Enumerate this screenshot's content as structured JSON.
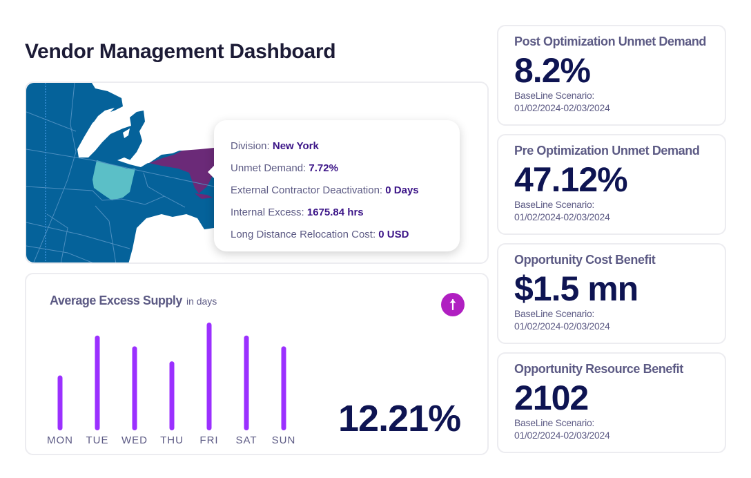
{
  "header": {
    "title": "Vendor Management Dashboard"
  },
  "map": {
    "colors": {
      "ocean_land": "#05629a",
      "borders": "#4d8fc0",
      "highlight_ohio": "#5bbfc7",
      "highlight_new_york": "#6b2a78",
      "lakes": "#ffffff"
    },
    "tooltip": {
      "rows": [
        {
          "label": "Division:",
          "value": "New York"
        },
        {
          "label": "Unmet Demand:",
          "value": "7.72%"
        },
        {
          "label": "External Contractor Deactivation:",
          "value": "0 Days"
        },
        {
          "label": "Internal Excess:",
          "value": "1675.84 hrs"
        },
        {
          "label": "Long Distance Relocation Cost:",
          "value": "0 USD"
        }
      ]
    }
  },
  "excess_supply": {
    "title": "Average Excess Supply",
    "subtitle": "in days",
    "trend_icon": "arrow-up-icon",
    "trend_color": "#b01fc1",
    "bar_color": "#9b30ff",
    "headline": "12.21%"
  },
  "chart_data": {
    "type": "bar",
    "title": "Average Excess Supply",
    "subtitle": "in days",
    "categories": [
      "MON",
      "TUE",
      "WED",
      "THU",
      "FRI",
      "SAT",
      "SUN"
    ],
    "values": [
      0.51,
      0.88,
      0.78,
      0.64,
      1.0,
      0.88,
      0.78
    ],
    "value_note": "relative heights (fraction of max); no axis shown",
    "xlabel": "",
    "ylabel": "",
    "ylim": [
      0,
      1
    ],
    "grid": false,
    "legend": "none"
  },
  "kpis": [
    {
      "title": "Post Optimization Unmet Demand",
      "value": "8.2%",
      "sub1": "BaseLine Scenario:",
      "sub2": "01/02/2024-02/03/2024"
    },
    {
      "title": "Pre Optimization Unmet Demand",
      "value": "47.12%",
      "sub1": "BaseLine Scenario:",
      "sub2": "01/02/2024-02/03/2024"
    },
    {
      "title": "Opportunity Cost Benefit",
      "value": "$1.5 mn",
      "sub1": "BaseLine Scenario:",
      "sub2": "01/02/2024-02/03/2024"
    },
    {
      "title": "Opportunity Resource Benefit",
      "value": "2102",
      "sub1": "BaseLine Scenario:",
      "sub2": "01/02/2024-02/03/2024"
    }
  ]
}
